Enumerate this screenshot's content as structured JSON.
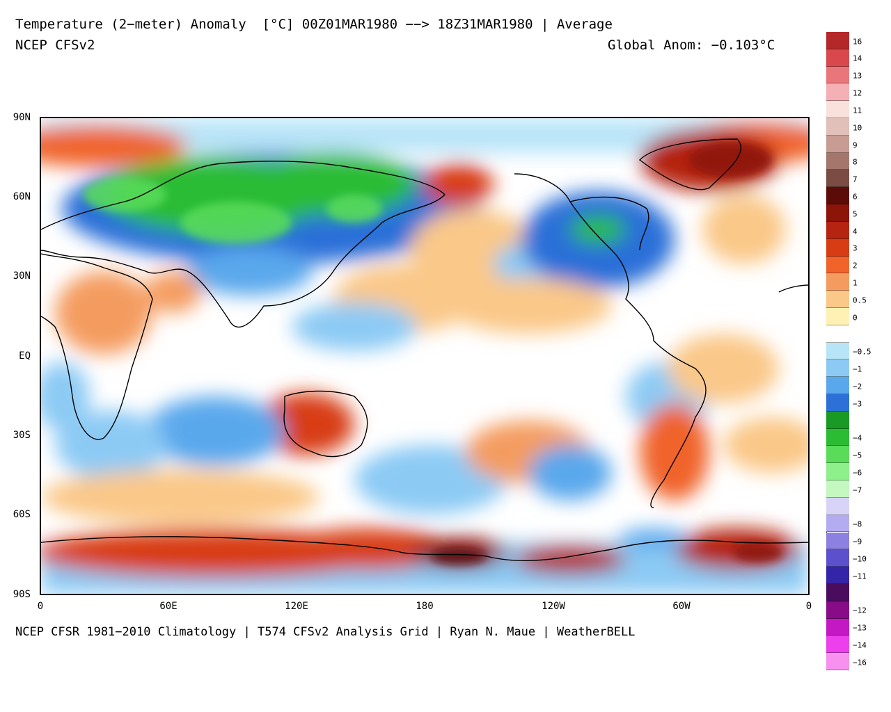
{
  "header": {
    "title": "Temperature (2−meter) Anomaly  [°C] 00Z01MAR1980 −−> 18Z31MAR1980 | Average",
    "model": "NCEP CFSv2",
    "global_anom": "Global Anom: −0.103°C"
  },
  "footer": "NCEP CFSR 1981−2010 Climatology | T574 CFSv2 Analysis Grid | Ryan N. Maue | WeatherBELL",
  "map": {
    "lat_labels": [
      "90N",
      "60N",
      "30N",
      "EQ",
      "30S",
      "60S",
      "90S"
    ],
    "lon_labels": [
      "0",
      "60E",
      "120E",
      "180",
      "120W",
      "60W",
      "0"
    ],
    "anomaly_regions": [
      {
        "name": "arctic-north-atlantic-warm",
        "value": 3
      },
      {
        "name": "greenland-warm",
        "value": 5
      },
      {
        "name": "siberia-cold",
        "value": -4
      },
      {
        "name": "eastern-asia-cold",
        "value": -3
      },
      {
        "name": "north-america-cold",
        "value": -3
      },
      {
        "name": "alaska-warm",
        "value": 3
      },
      {
        "name": "north-africa-warm",
        "value": 1.5
      },
      {
        "name": "australia-warm",
        "value": 3
      },
      {
        "name": "argentina-warm",
        "value": 2
      },
      {
        "name": "antarctica-east-warm",
        "value": 4
      },
      {
        "name": "ross-sea-warm",
        "value": 6
      },
      {
        "name": "weddell-sea-warm",
        "value": 5
      },
      {
        "name": "southern-ocean-cold",
        "value": -1
      }
    ]
  },
  "colorbar": {
    "levels": [
      {
        "label": "16",
        "color": "#b4282a"
      },
      {
        "label": "14",
        "color": "#d8484c"
      },
      {
        "label": "13",
        "color": "#e8767a"
      },
      {
        "label": "12",
        "color": "#f4b0b4"
      },
      {
        "label": "11",
        "color": "#fae2dc"
      },
      {
        "label": "10",
        "color": "#e0c0b8"
      },
      {
        "label": "9",
        "color": "#c89c92"
      },
      {
        "label": "8",
        "color": "#a4766c"
      },
      {
        "label": "7",
        "color": "#7a4c44"
      },
      {
        "label": "6",
        "color": "#5c0c08"
      },
      {
        "label": "5",
        "color": "#8c1408"
      },
      {
        "label": "4",
        "color": "#b42410"
      },
      {
        "label": "3",
        "color": "#d83c14"
      },
      {
        "label": "2",
        "color": "#f0642c"
      },
      {
        "label": "1",
        "color": "#f49c60"
      },
      {
        "label": "0.5",
        "color": "#fac888"
      },
      {
        "label": "0",
        "color": "#fff0b4"
      },
      {
        "label": "",
        "color": "#ffffff"
      },
      {
        "label": "−0.5",
        "color": "#b8e4f8"
      },
      {
        "label": "−1",
        "color": "#8ccaf4"
      },
      {
        "label": "−2",
        "color": "#5aa8ec"
      },
      {
        "label": "−3",
        "color": "#2c70d8"
      },
      {
        "label": "",
        "color": "#1a9a24"
      },
      {
        "label": "−4",
        "color": "#2cbc34"
      },
      {
        "label": "−5",
        "color": "#5adc5a"
      },
      {
        "label": "−6",
        "color": "#8ef08a"
      },
      {
        "label": "−7",
        "color": "#c4f8c0"
      },
      {
        "label": "",
        "color": "#d8d4f8"
      },
      {
        "label": "−8",
        "color": "#b4acf0"
      },
      {
        "label": "−9",
        "color": "#8c80e0"
      },
      {
        "label": "−10",
        "color": "#5c50cc"
      },
      {
        "label": "−11",
        "color": "#3424a8"
      },
      {
        "label": "",
        "color": "#4a0c5c"
      },
      {
        "label": "−12",
        "color": "#880c88"
      },
      {
        "label": "−13",
        "color": "#c418c4"
      },
      {
        "label": "−14",
        "color": "#ec40ec"
      },
      {
        "label": "−16",
        "color": "#f890f0"
      }
    ]
  }
}
